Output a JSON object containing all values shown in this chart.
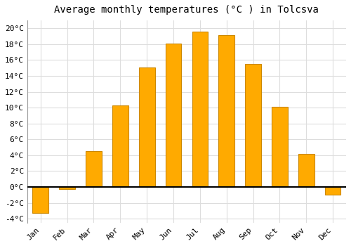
{
  "title": "Average monthly temperatures (°C ) in Tolcsva",
  "months": [
    "Jan",
    "Feb",
    "Mar",
    "Apr",
    "May",
    "Jun",
    "Jul",
    "Aug",
    "Sep",
    "Oct",
    "Nov",
    "Dec"
  ],
  "values": [
    -3.3,
    -0.3,
    4.5,
    10.3,
    15.1,
    18.1,
    19.6,
    19.1,
    15.5,
    10.1,
    4.2,
    -1.0
  ],
  "bar_color": "#FFAA00",
  "bar_edge_color": "#CC8800",
  "background_color": "#FFFFFF",
  "grid_color": "#DDDDDD",
  "ylim": [
    -4.5,
    21
  ],
  "yticks": [
    -4,
    -2,
    0,
    2,
    4,
    6,
    8,
    10,
    12,
    14,
    16,
    18,
    20
  ],
  "title_fontsize": 10,
  "tick_fontsize": 8,
  "bar_width": 0.6
}
